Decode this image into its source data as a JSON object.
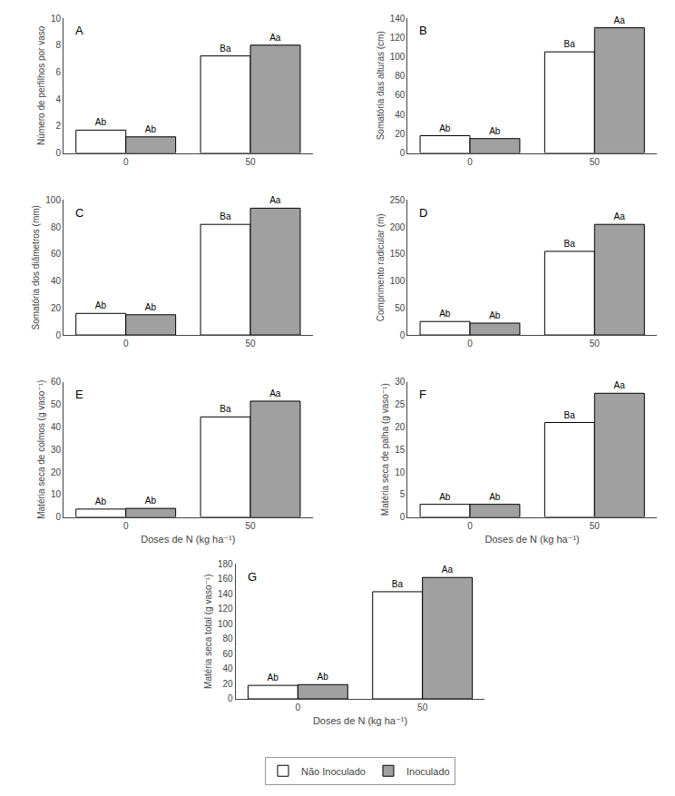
{
  "chart_data": [
    {
      "type": "bar",
      "title": "A",
      "y_label": "Número de perfilhos por vaso",
      "categories": [
        "0",
        "50"
      ],
      "series": [
        {
          "name": "Não Inoculado",
          "color": "#ffffff",
          "values": [
            1.7,
            7.2
          ],
          "value_labels": [
            "Ab",
            "Ba"
          ]
        },
        {
          "name": "Inoculado",
          "color": "#a0a0a0",
          "values": [
            1.2,
            8.0
          ],
          "value_labels": [
            "Ab",
            "Aa"
          ]
        }
      ],
      "ylim": [
        0,
        10
      ],
      "yticks": [
        0,
        2,
        4,
        6,
        8,
        10
      ],
      "grid": false,
      "legend": "bottom"
    },
    {
      "type": "bar",
      "title": "B",
      "y_label": "Somatória das alturas (cm)",
      "categories": [
        "0",
        "50"
      ],
      "series": [
        {
          "name": "Não Inoculado",
          "color": "#ffffff",
          "values": [
            18,
            105
          ],
          "value_labels": [
            "Ab",
            "Ba"
          ]
        },
        {
          "name": "Inoculado",
          "color": "#a0a0a0",
          "values": [
            15,
            130
          ],
          "value_labels": [
            "Ab",
            "Aa"
          ]
        }
      ],
      "ylim": [
        0,
        140
      ],
      "yticks": [
        0,
        20,
        40,
        60,
        80,
        100,
        120,
        140
      ],
      "grid": false,
      "legend": "bottom"
    },
    {
      "type": "bar",
      "title": "C",
      "y_label": "Somatória dos diâmetros (mm)",
      "categories": [
        "0",
        "50"
      ],
      "series": [
        {
          "name": "Não Inoculado",
          "color": "#ffffff",
          "values": [
            16,
            82
          ],
          "value_labels": [
            "Ab",
            "Ba"
          ]
        },
        {
          "name": "Inoculado",
          "color": "#a0a0a0",
          "values": [
            15,
            94
          ],
          "value_labels": [
            "Ab",
            "Aa"
          ]
        }
      ],
      "ylim": [
        0,
        100
      ],
      "yticks": [
        0,
        20,
        40,
        60,
        80,
        100
      ],
      "grid": false,
      "legend": "bottom"
    },
    {
      "type": "bar",
      "title": "D",
      "y_label": "Comprimento radicular (m)",
      "categories": [
        "0",
        "50"
      ],
      "series": [
        {
          "name": "Não Inoculado",
          "color": "#ffffff",
          "values": [
            25,
            155
          ],
          "value_labels": [
            "Ab",
            "Ba"
          ]
        },
        {
          "name": "Inoculado",
          "color": "#a0a0a0",
          "values": [
            22,
            205
          ],
          "value_labels": [
            "Ab",
            "Aa"
          ]
        }
      ],
      "ylim": [
        0,
        250
      ],
      "yticks": [
        0,
        50,
        100,
        150,
        200,
        250
      ],
      "grid": false,
      "legend": "bottom"
    },
    {
      "type": "bar",
      "title": "E",
      "y_label": "Matéria seca de colmos (g vaso⁻¹)",
      "x_label": "Doses de N (kg ha⁻¹)",
      "categories": [
        "0",
        "50"
      ],
      "series": [
        {
          "name": "Não Inoculado",
          "color": "#ffffff",
          "values": [
            3.5,
            44.5
          ],
          "value_labels": [
            "Ab",
            "Ba"
          ]
        },
        {
          "name": "Inoculado",
          "color": "#a0a0a0",
          "values": [
            3.8,
            51.5
          ],
          "value_labels": [
            "Ab",
            "Aa"
          ]
        }
      ],
      "ylim": [
        0,
        60
      ],
      "yticks": [
        0,
        10,
        20,
        30,
        40,
        50,
        60
      ],
      "grid": false,
      "legend": "bottom"
    },
    {
      "type": "bar",
      "title": "F",
      "y_label": "Matéria seca de palha (g vaso⁻¹)",
      "x_label": "Doses de N (kg ha⁻¹)",
      "categories": [
        "0",
        "50"
      ],
      "series": [
        {
          "name": "Não Inoculado",
          "color": "#ffffff",
          "values": [
            2.8,
            21.0
          ],
          "value_labels": [
            "Ab",
            "Ba"
          ]
        },
        {
          "name": "Inoculado",
          "color": "#a0a0a0",
          "values": [
            2.8,
            27.5
          ],
          "value_labels": [
            "Ab",
            "Aa"
          ]
        }
      ],
      "ylim": [
        0,
        30
      ],
      "yticks": [
        0,
        5,
        10,
        15,
        20,
        25,
        30
      ],
      "grid": false,
      "legend": "bottom"
    },
    {
      "type": "bar",
      "title": "G",
      "y_label": "Matéria seca total (g vaso⁻¹)",
      "x_label": "Doses de N (kg ha⁻¹)",
      "categories": [
        "0",
        "50"
      ],
      "series": [
        {
          "name": "Não Inoculado",
          "color": "#ffffff",
          "values": [
            18,
            143
          ],
          "value_labels": [
            "Ab",
            "Ba"
          ]
        },
        {
          "name": "Inoculado",
          "color": "#a0a0a0",
          "values": [
            19,
            162
          ],
          "value_labels": [
            "Ab",
            "Aa"
          ]
        }
      ],
      "ylim": [
        0,
        180
      ],
      "yticks": [
        0,
        20,
        40,
        60,
        80,
        100,
        120,
        140,
        160,
        180
      ],
      "grid": false,
      "legend": "bottom"
    }
  ]
}
